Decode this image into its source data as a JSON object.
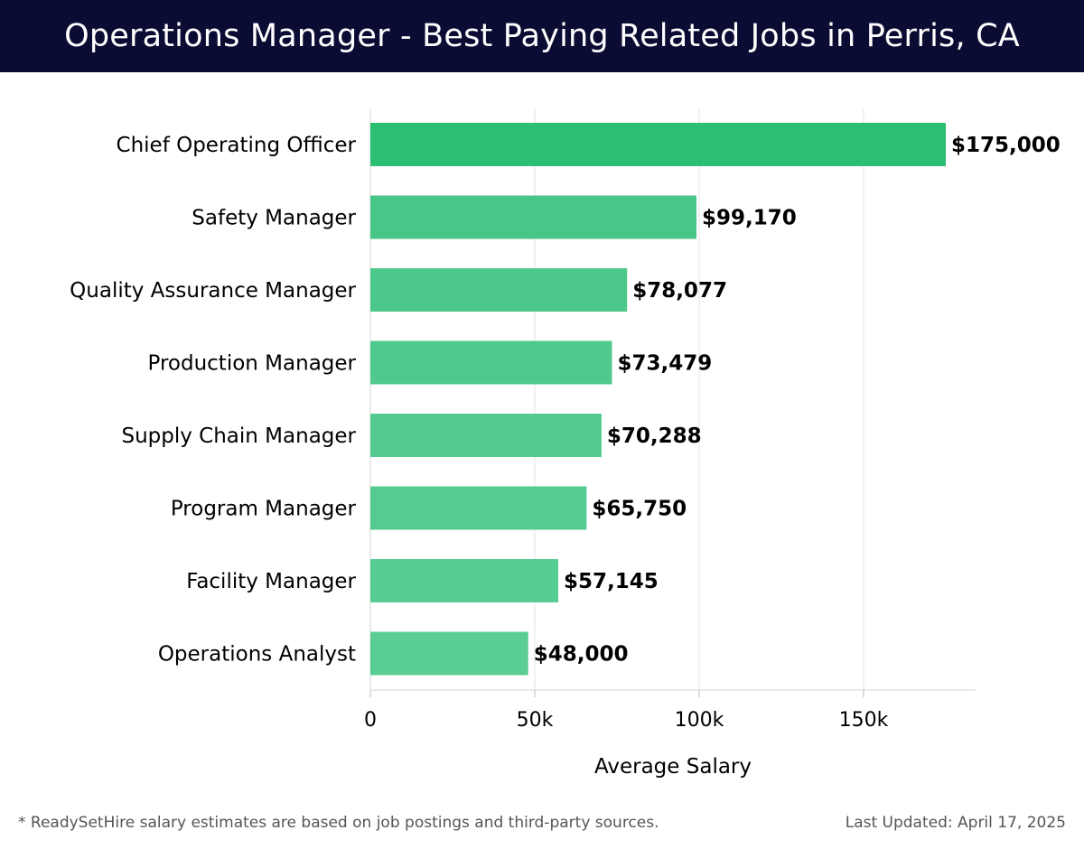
{
  "header": {
    "title": "Operations Manager - Best Paying Related Jobs in Perris, CA",
    "background": "#0b0c33"
  },
  "chart_data": {
    "type": "bar",
    "orientation": "horizontal",
    "title": "Operations Manager - Best Paying Related Jobs in Perris, CA",
    "xlabel": "Average Salary",
    "ylabel": "",
    "xlim": [
      0,
      185000
    ],
    "xticks": [
      {
        "value": 0,
        "label": "0"
      },
      {
        "value": 50000,
        "label": "50k"
      },
      {
        "value": 100000,
        "label": "100k"
      },
      {
        "value": 150000,
        "label": "150k"
      }
    ],
    "grid": true,
    "categories": [
      "Chief Operating Officer",
      "Safety Manager",
      "Quality Assurance Manager",
      "Production Manager",
      "Supply Chain Manager",
      "Program Manager",
      "Facility Manager",
      "Operations Analyst"
    ],
    "values": [
      175000,
      99170,
      78077,
      73479,
      70288,
      65750,
      57145,
      48000
    ],
    "value_labels": [
      "$175,000",
      "$99,170",
      "$78,077",
      "$73,479",
      "$70,288",
      "$65,750",
      "$57,145",
      "$48,000"
    ],
    "bar_colors": [
      "#2bbf73",
      "#47c687",
      "#4cc88a",
      "#4fc98d",
      "#52ca8f",
      "#54cb90",
      "#57cc93",
      "#5acd95"
    ]
  },
  "footer": {
    "note": "* ReadySetHire salary estimates are based on job postings and third-party sources.",
    "updated": "Last Updated: April 17, 2025"
  }
}
